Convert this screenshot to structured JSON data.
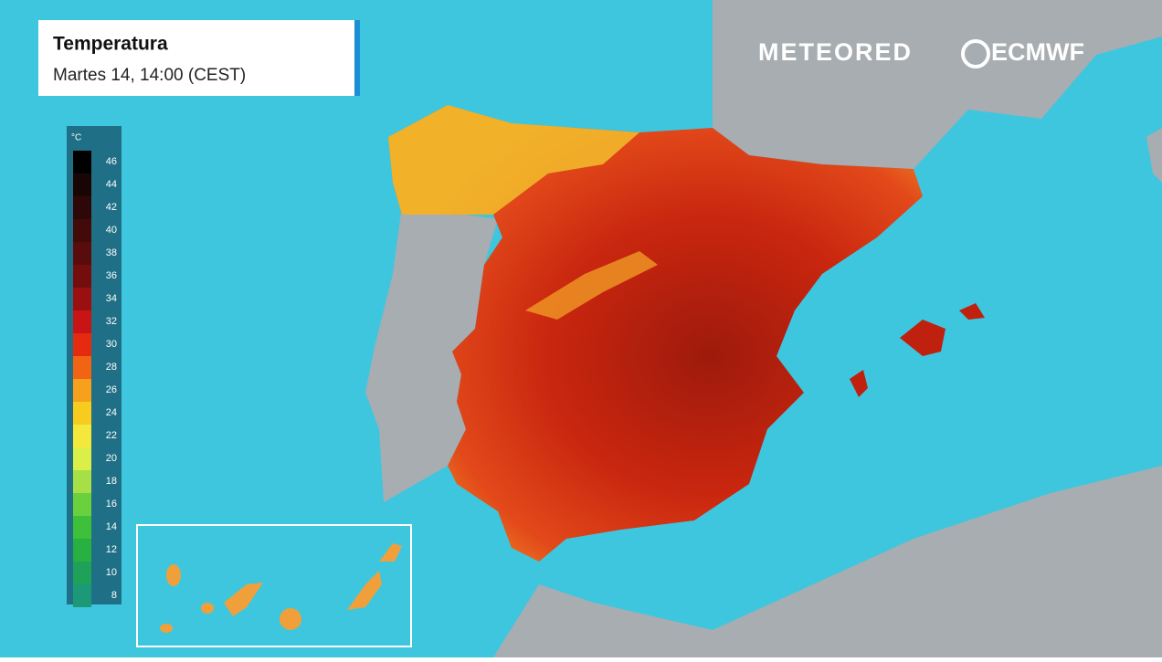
{
  "header": {
    "title": "Temperatura",
    "subtitle": "Martes 14, 14:00 (CEST)"
  },
  "logos": {
    "brand": "METEORED",
    "partner": "ECMWF"
  },
  "legend": {
    "unit": "°C",
    "labels": [
      46,
      44,
      42,
      40,
      38,
      36,
      34,
      32,
      30,
      28,
      26,
      24,
      22,
      20,
      18,
      16,
      14,
      12,
      10,
      8
    ],
    "colors": [
      "#000000",
      "#1a0505",
      "#2e0808",
      "#430a0a",
      "#5a0c0c",
      "#740d0d",
      "#9a0f0f",
      "#c81414",
      "#e62a0f",
      "#f06414",
      "#f6a01c",
      "#f8cc1e",
      "#f4e83a",
      "#dcef48",
      "#a6e046",
      "#6ad03e",
      "#3ec03a",
      "#28b040",
      "#1ea25a",
      "#1c9a78"
    ]
  }
}
